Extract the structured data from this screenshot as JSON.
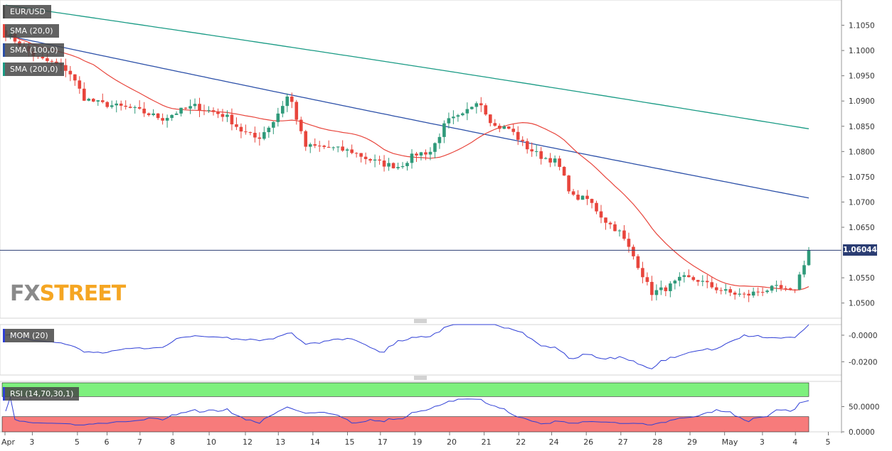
{
  "chart_data": [
    {
      "type": "candlestick",
      "title": "EUR/USD",
      "ylim": [
        1.047,
        1.11
      ],
      "yticks": [
        "1.1050",
        "1.1000",
        "1.0950",
        "1.0900",
        "1.0850",
        "1.0800",
        "1.0750",
        "1.0700",
        "1.0650",
        "1.0550",
        "1.0500"
      ],
      "ytick_values": [
        1.105,
        1.1,
        1.095,
        1.09,
        1.085,
        1.08,
        1.075,
        1.07,
        1.065,
        1.055,
        1.05
      ],
      "current_price_label": "1.06044",
      "current_price": 1.06044,
      "grid": true,
      "indicators": [
        {
          "name": "SMA (20,0)",
          "color": "#e8453c"
        },
        {
          "name": "SMA (100,0)",
          "color": "#2b4fa8"
        },
        {
          "name": "SMA (200,0)",
          "color": "#1a9b85"
        }
      ],
      "close_path": [
        1.1035,
        1.101,
        1.0985,
        1.0975,
        1.096,
        1.0905,
        1.0895,
        1.089,
        1.0885,
        1.0875,
        1.0865,
        1.088,
        1.089,
        1.088,
        1.087,
        1.084,
        1.0825,
        1.086,
        1.0915,
        1.081,
        1.081,
        1.0805,
        1.08,
        1.0785,
        1.0775,
        1.077,
        1.0795,
        1.08,
        1.086,
        1.087,
        1.0905,
        1.085,
        1.0845,
        1.081,
        1.079,
        1.078,
        1.071,
        1.0705,
        1.0665,
        1.064,
        1.0585,
        1.052,
        1.053,
        1.055,
        1.0545,
        1.053,
        1.052,
        1.0515,
        1.0525,
        1.053,
        1.052,
        1.0604
      ]
    },
    {
      "type": "line",
      "title": "MOM (20)",
      "ylim": [
        -0.03,
        0.008
      ],
      "yticks": [
        "-0.0000",
        "-0.0200"
      ],
      "ytick_values": [
        0.0,
        -0.02
      ],
      "color": "#2f3fd6"
    },
    {
      "type": "line",
      "title": "RSI (14,70,30,1)",
      "ylim": [
        0,
        100
      ],
      "yticks": [
        "50.0000",
        "0.0000"
      ],
      "ytick_values": [
        50,
        0
      ],
      "overbought": 70,
      "oversold": 30,
      "color": "#2f3fd6"
    }
  ],
  "xaxis": {
    "labels": [
      {
        "t": "Apr",
        "d": 0
      },
      {
        "t": "3",
        "d": 0.83
      },
      {
        "t": "5",
        "d": 2.2
      },
      {
        "t": "6",
        "d": 3.1
      },
      {
        "t": "7",
        "d": 4.1
      },
      {
        "t": "8",
        "d": 5.1
      },
      {
        "t": "10",
        "d": 6.2
      },
      {
        "t": "12",
        "d": 7.3
      },
      {
        "t": "13",
        "d": 8.3
      },
      {
        "t": "14",
        "d": 9.35
      },
      {
        "t": "15",
        "d": 10.4
      },
      {
        "t": "17",
        "d": 11.4
      },
      {
        "t": "19",
        "d": 12.45
      },
      {
        "t": "20",
        "d": 13.5
      },
      {
        "t": "21",
        "d": 14.55
      },
      {
        "t": "22",
        "d": 15.6
      },
      {
        "t": "24",
        "d": 16.6
      },
      {
        "t": "26",
        "d": 17.65
      },
      {
        "t": "27",
        "d": 18.7
      },
      {
        "t": "28",
        "d": 19.75
      },
      {
        "t": "29",
        "d": 20.8
      },
      {
        "t": "May",
        "d": 21.85
      },
      {
        "t": "3",
        "d": 23.0
      },
      {
        "t": "4",
        "d": 24.0
      },
      {
        "t": "5",
        "d": 25.0
      }
    ]
  },
  "legend": {
    "main": "EUR/USD",
    "sma20": "SMA (20,0)",
    "sma100": "SMA (100,0)",
    "sma200": "SMA (200,0)",
    "mom": "MOM (20)",
    "rsi": "RSI (14,70,30,1)"
  },
  "logo": {
    "fx": "FX",
    "street": "STREET"
  },
  "colors": {
    "bull": "#2f9a7a",
    "bear": "#e8453c",
    "sma20": "#e8453c",
    "sma100": "#2b4fa8",
    "sma200": "#1a9b85",
    "rsi_overbought": "#7ef07e",
    "rsi_oversold": "#f77b7b",
    "price_line": "#2b3d73"
  }
}
